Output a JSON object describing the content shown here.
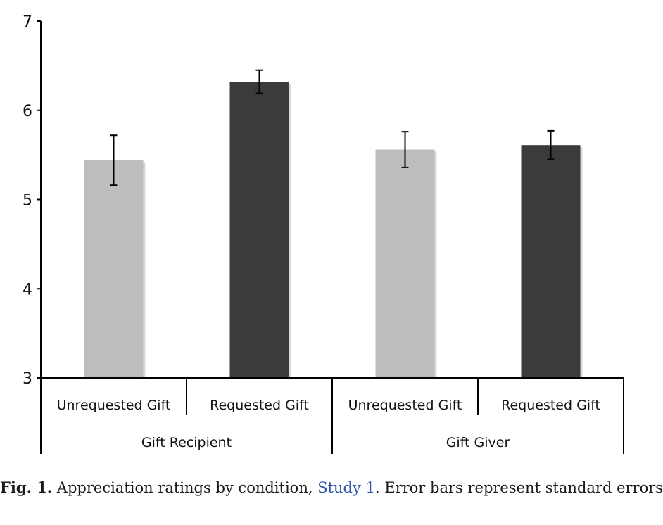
{
  "chart_data": {
    "type": "bar",
    "categories": [
      "Unrequested Gift",
      "Requested Gift",
      "Unrequested Gift",
      "Requested Gift"
    ],
    "groups": [
      {
        "label": "Gift Recipient",
        "category_indices": [
          0,
          1
        ]
      },
      {
        "label": "Gift Giver",
        "category_indices": [
          2,
          3
        ]
      }
    ],
    "values": [
      5.44,
      6.32,
      5.56,
      5.61
    ],
    "error_bars": [
      0.28,
      0.13,
      0.2,
      0.16
    ],
    "bar_colors": [
      "#bdbdbd",
      "#3b3b3b",
      "#bdbdbd",
      "#3b3b3b"
    ],
    "ylim": [
      3,
      7
    ],
    "yticks": [
      "3",
      "4",
      "5",
      "6",
      "7"
    ],
    "grid": false,
    "xlabel": "",
    "ylabel": ""
  },
  "caption": {
    "fig_label": "Fig. 1.",
    "text_before_link": " Appreciation ratings by condition, ",
    "link_text": "Study 1",
    "text_after_link": ". Error bars represent standard errors."
  }
}
